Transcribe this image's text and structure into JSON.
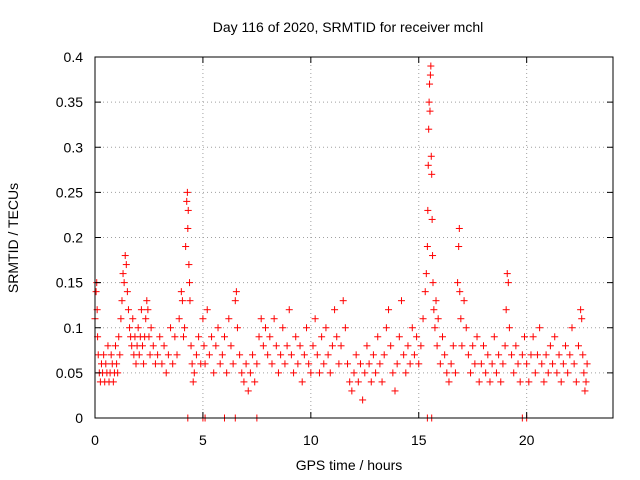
{
  "chart_data": {
    "type": "scatter",
    "title": "Day 116 of 2020, SRMTID for receiver mchl",
    "xlabel": "GPS time / hours",
    "ylabel": "SRMTID / TECUs",
    "xlim": [
      0,
      24
    ],
    "ylim": [
      0,
      0.4
    ],
    "xticks": [
      0,
      5,
      10,
      15,
      20
    ],
    "xtick_labels": [
      "0",
      "5",
      "10",
      "15",
      "20"
    ],
    "yticks": [
      0,
      0.05,
      0.1,
      0.15,
      0.2,
      0.25,
      0.3,
      0.35,
      0.4
    ],
    "ytick_labels": [
      "0",
      "0.05",
      "0.1",
      "0.15",
      "0.2",
      "0.25",
      "0.3",
      "0.35",
      "0.4"
    ],
    "grid": true,
    "marker": "+",
    "color": "#ff0000",
    "series": [
      {
        "name": "SRMTID",
        "points": [
          [
            0.0,
            0.11
          ],
          [
            0.05,
            0.14
          ],
          [
            0.08,
            0.15
          ],
          [
            0.1,
            0.12
          ],
          [
            0.12,
            0.09
          ],
          [
            0.15,
            0.07
          ],
          [
            0.2,
            0.05
          ],
          [
            0.25,
            0.04
          ],
          [
            0.3,
            0.06
          ],
          [
            0.35,
            0.05
          ],
          [
            0.4,
            0.07
          ],
          [
            0.45,
            0.04
          ],
          [
            0.5,
            0.06
          ],
          [
            0.55,
            0.05
          ],
          [
            0.6,
            0.08
          ],
          [
            0.65,
            0.04
          ],
          [
            0.7,
            0.05
          ],
          [
            0.75,
            0.07
          ],
          [
            0.8,
            0.06
          ],
          [
            0.85,
            0.04
          ],
          [
            0.9,
            0.05
          ],
          [
            0.95,
            0.08
          ],
          [
            1.0,
            0.06
          ],
          [
            1.05,
            0.05
          ],
          [
            1.1,
            0.09
          ],
          [
            1.15,
            0.07
          ],
          [
            1.2,
            0.11
          ],
          [
            1.25,
            0.13
          ],
          [
            1.3,
            0.16
          ],
          [
            1.35,
            0.15
          ],
          [
            1.4,
            0.18
          ],
          [
            1.45,
            0.17
          ],
          [
            1.5,
            0.14
          ],
          [
            1.55,
            0.12
          ],
          [
            1.6,
            0.1
          ],
          [
            1.65,
            0.09
          ],
          [
            1.7,
            0.08
          ],
          [
            1.75,
            0.11
          ],
          [
            1.8,
            0.07
          ],
          [
            1.85,
            0.09
          ],
          [
            1.9,
            0.06
          ],
          [
            1.95,
            0.08
          ],
          [
            2.0,
            0.1
          ],
          [
            2.05,
            0.07
          ],
          [
            2.1,
            0.09
          ],
          [
            2.15,
            0.12
          ],
          [
            2.2,
            0.08
          ],
          [
            2.25,
            0.06
          ],
          [
            2.3,
            0.09
          ],
          [
            2.35,
            0.11
          ],
          [
            2.4,
            0.13
          ],
          [
            2.45,
            0.12
          ],
          [
            2.5,
            0.09
          ],
          [
            2.55,
            0.07
          ],
          [
            2.6,
            0.1
          ],
          [
            2.7,
            0.08
          ],
          [
            2.8,
            0.06
          ],
          [
            2.9,
            0.07
          ],
          [
            3.0,
            0.09
          ],
          [
            3.1,
            0.06
          ],
          [
            3.2,
            0.08
          ],
          [
            3.3,
            0.05
          ],
          [
            3.4,
            0.07
          ],
          [
            3.5,
            0.1
          ],
          [
            3.6,
            0.06
          ],
          [
            3.7,
            0.09
          ],
          [
            3.8,
            0.07
          ],
          [
            3.9,
            0.11
          ],
          [
            4.0,
            0.14
          ],
          [
            4.05,
            0.13
          ],
          [
            4.1,
            0.09
          ],
          [
            4.15,
            0.1
          ],
          [
            4.2,
            0.19
          ],
          [
            4.25,
            0.24
          ],
          [
            4.28,
            0.25
          ],
          [
            4.3,
            0.21
          ],
          [
            4.32,
            0.23
          ],
          [
            4.35,
            0.17
          ],
          [
            4.38,
            0.15
          ],
          [
            4.4,
            0.13
          ],
          [
            4.45,
            0.08
          ],
          [
            4.5,
            0.06
          ],
          [
            4.55,
            0.04
          ],
          [
            4.6,
            0.05
          ],
          [
            4.7,
            0.07
          ],
          [
            4.8,
            0.09
          ],
          [
            4.9,
            0.06
          ],
          [
            5.0,
            0.11
          ],
          [
            5.05,
            0.08
          ],
          [
            5.1,
            0.06
          ],
          [
            5.2,
            0.12
          ],
          [
            5.3,
            0.07
          ],
          [
            5.4,
            0.09
          ],
          [
            5.5,
            0.05
          ],
          [
            5.6,
            0.08
          ],
          [
            5.7,
            0.1
          ],
          [
            5.8,
            0.06
          ],
          [
            5.9,
            0.07
          ],
          [
            6.0,
            0.09
          ],
          [
            6.1,
            0.05
          ],
          [
            6.2,
            0.11
          ],
          [
            6.3,
            0.08
          ],
          [
            6.4,
            0.06
          ],
          [
            6.5,
            0.13
          ],
          [
            6.55,
            0.14
          ],
          [
            6.6,
            0.1
          ],
          [
            6.7,
            0.07
          ],
          [
            6.8,
            0.05
          ],
          [
            6.9,
            0.04
          ],
          [
            7.0,
            0.06
          ],
          [
            7.1,
            0.03
          ],
          [
            7.2,
            0.05
          ],
          [
            7.3,
            0.07
          ],
          [
            7.4,
            0.04
          ],
          [
            7.5,
            0.06
          ],
          [
            7.6,
            0.09
          ],
          [
            7.7,
            0.11
          ],
          [
            7.8,
            0.08
          ],
          [
            7.9,
            0.1
          ],
          [
            8.0,
            0.07
          ],
          [
            8.1,
            0.09
          ],
          [
            8.2,
            0.06
          ],
          [
            8.3,
            0.11
          ],
          [
            8.4,
            0.08
          ],
          [
            8.5,
            0.05
          ],
          [
            8.6,
            0.07
          ],
          [
            8.7,
            0.1
          ],
          [
            8.8,
            0.06
          ],
          [
            8.9,
            0.08
          ],
          [
            9.0,
            0.12
          ],
          [
            9.1,
            0.07
          ],
          [
            9.2,
            0.05
          ],
          [
            9.3,
            0.09
          ],
          [
            9.4,
            0.06
          ],
          [
            9.5,
            0.08
          ],
          [
            9.6,
            0.04
          ],
          [
            9.7,
            0.07
          ],
          [
            9.8,
            0.1
          ],
          [
            9.9,
            0.06
          ],
          [
            10.0,
            0.05
          ],
          [
            10.1,
            0.08
          ],
          [
            10.2,
            0.11
          ],
          [
            10.3,
            0.07
          ],
          [
            10.4,
            0.05
          ],
          [
            10.5,
            0.09
          ],
          [
            10.6,
            0.06
          ],
          [
            10.7,
            0.1
          ],
          [
            10.8,
            0.07
          ],
          [
            10.9,
            0.05
          ],
          [
            11.0,
            0.08
          ],
          [
            11.1,
            0.12
          ],
          [
            11.2,
            0.09
          ],
          [
            11.3,
            0.06
          ],
          [
            11.4,
            0.08
          ],
          [
            11.5,
            0.13
          ],
          [
            11.6,
            0.1
          ],
          [
            11.7,
            0.06
          ],
          [
            11.8,
            0.04
          ],
          [
            11.9,
            0.03
          ],
          [
            12.0,
            0.05
          ],
          [
            12.1,
            0.07
          ],
          [
            12.2,
            0.04
          ],
          [
            12.3,
            0.06
          ],
          [
            12.4,
            0.02
          ],
          [
            12.5,
            0.05
          ],
          [
            12.6,
            0.08
          ],
          [
            12.7,
            0.06
          ],
          [
            12.8,
            0.04
          ],
          [
            12.9,
            0.07
          ],
          [
            13.0,
            0.05
          ],
          [
            13.1,
            0.09
          ],
          [
            13.2,
            0.06
          ],
          [
            13.3,
            0.04
          ],
          [
            13.4,
            0.07
          ],
          [
            13.5,
            0.1
          ],
          [
            13.6,
            0.12
          ],
          [
            13.7,
            0.08
          ],
          [
            13.8,
            0.05
          ],
          [
            13.9,
            0.03
          ],
          [
            14.0,
            0.06
          ],
          [
            14.1,
            0.09
          ],
          [
            14.2,
            0.13
          ],
          [
            14.3,
            0.07
          ],
          [
            14.4,
            0.05
          ],
          [
            14.5,
            0.08
          ],
          [
            14.6,
            0.06
          ],
          [
            14.7,
            0.1
          ],
          [
            14.8,
            0.07
          ],
          [
            14.9,
            0.09
          ],
          [
            15.0,
            0.06
          ],
          [
            15.1,
            0.08
          ],
          [
            15.2,
            0.11
          ],
          [
            15.3,
            0.14
          ],
          [
            15.35,
            0.16
          ],
          [
            15.4,
            0.19
          ],
          [
            15.42,
            0.23
          ],
          [
            15.44,
            0.28
          ],
          [
            15.46,
            0.32
          ],
          [
            15.48,
            0.35
          ],
          [
            15.5,
            0.37
          ],
          [
            15.52,
            0.34
          ],
          [
            15.54,
            0.38
          ],
          [
            15.56,
            0.39
          ],
          [
            15.58,
            0.29
          ],
          [
            15.6,
            0.27
          ],
          [
            15.62,
            0.22
          ],
          [
            15.64,
            0.18
          ],
          [
            15.66,
            0.15
          ],
          [
            15.7,
            0.12
          ],
          [
            15.75,
            0.1
          ],
          [
            15.8,
            0.13
          ],
          [
            15.85,
            0.08
          ],
          [
            15.9,
            0.11
          ],
          [
            16.0,
            0.06
          ],
          [
            16.1,
            0.09
          ],
          [
            16.2,
            0.07
          ],
          [
            16.3,
            0.05
          ],
          [
            16.4,
            0.04
          ],
          [
            16.5,
            0.06
          ],
          [
            16.6,
            0.08
          ],
          [
            16.7,
            0.05
          ],
          [
            16.8,
            0.15
          ],
          [
            16.85,
            0.19
          ],
          [
            16.88,
            0.21
          ],
          [
            16.9,
            0.14
          ],
          [
            16.95,
            0.11
          ],
          [
            17.0,
            0.08
          ],
          [
            17.1,
            0.13
          ],
          [
            17.2,
            0.1
          ],
          [
            17.3,
            0.07
          ],
          [
            17.4,
            0.05
          ],
          [
            17.5,
            0.08
          ],
          [
            17.6,
            0.06
          ],
          [
            17.7,
            0.09
          ],
          [
            17.8,
            0.04
          ],
          [
            17.9,
            0.06
          ],
          [
            18.0,
            0.08
          ],
          [
            18.1,
            0.05
          ],
          [
            18.2,
            0.07
          ],
          [
            18.3,
            0.04
          ],
          [
            18.4,
            0.06
          ],
          [
            18.5,
            0.09
          ],
          [
            18.6,
            0.05
          ],
          [
            18.7,
            0.07
          ],
          [
            18.8,
            0.04
          ],
          [
            18.9,
            0.06
          ],
          [
            19.0,
            0.08
          ],
          [
            19.05,
            0.12
          ],
          [
            19.1,
            0.16
          ],
          [
            19.15,
            0.15
          ],
          [
            19.2,
            0.1
          ],
          [
            19.3,
            0.07
          ],
          [
            19.4,
            0.05
          ],
          [
            19.5,
            0.08
          ],
          [
            19.6,
            0.06
          ],
          [
            19.7,
            0.04
          ],
          [
            19.8,
            0.07
          ],
          [
            19.9,
            0.09
          ],
          [
            20.0,
            0.06
          ],
          [
            20.1,
            0.04
          ],
          [
            20.2,
            0.07
          ],
          [
            20.3,
            0.09
          ],
          [
            20.4,
            0.05
          ],
          [
            20.5,
            0.07
          ],
          [
            20.6,
            0.1
          ],
          [
            20.7,
            0.06
          ],
          [
            20.8,
            0.04
          ],
          [
            20.9,
            0.07
          ],
          [
            21.0,
            0.05
          ],
          [
            21.1,
            0.08
          ],
          [
            21.2,
            0.06
          ],
          [
            21.3,
            0.09
          ],
          [
            21.4,
            0.05
          ],
          [
            21.5,
            0.07
          ],
          [
            21.6,
            0.04
          ],
          [
            21.7,
            0.06
          ],
          [
            21.8,
            0.08
          ],
          [
            21.9,
            0.05
          ],
          [
            22.0,
            0.07
          ],
          [
            22.1,
            0.1
          ],
          [
            22.2,
            0.06
          ],
          [
            22.3,
            0.04
          ],
          [
            22.4,
            0.08
          ],
          [
            22.5,
            0.12
          ],
          [
            22.55,
            0.11
          ],
          [
            22.6,
            0.07
          ],
          [
            22.65,
            0.05
          ],
          [
            22.7,
            0.03
          ],
          [
            22.75,
            0.04
          ],
          [
            22.8,
            0.06
          ],
          [
            4.3,
            0.0
          ],
          [
            5.0,
            0.0
          ],
          [
            5.1,
            0.0
          ],
          [
            6.0,
            0.0
          ],
          [
            6.5,
            0.0
          ],
          [
            7.5,
            0.0
          ],
          [
            15.4,
            0.0
          ],
          [
            15.6,
            0.0
          ],
          [
            19.8,
            0.0
          ],
          [
            20.0,
            0.0
          ]
        ]
      }
    ]
  }
}
